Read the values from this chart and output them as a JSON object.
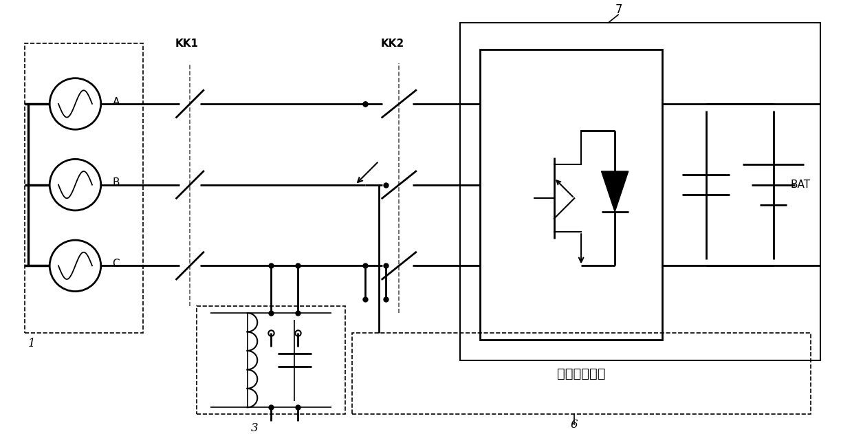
{
  "bg_color": "#ffffff",
  "line_color": "#000000",
  "dashed_color": "#555555",
  "label_1": "1",
  "label_3": "3",
  "label_6": "6",
  "label_7": "7",
  "label_A": "A",
  "label_B": "B",
  "label_C": "C",
  "label_KK1": "KK1",
  "label_KK2": "KK2",
  "label_BAT": "BAT",
  "label_controller": "逃变器控制器",
  "figsize": [
    12.39,
    6.31
  ],
  "dpi": 100
}
